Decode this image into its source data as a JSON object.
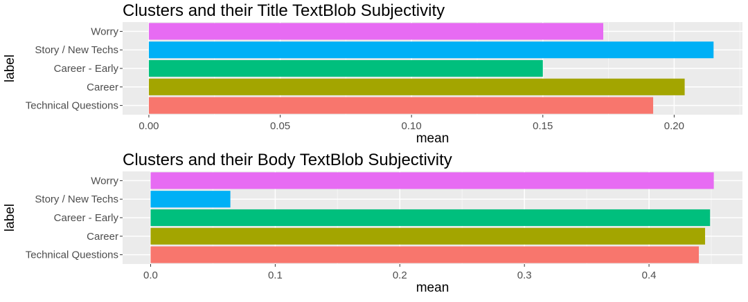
{
  "chart_data": [
    {
      "type": "bar",
      "orientation": "horizontal",
      "title": "Clusters and their Title TextBlob Subjectivity",
      "xlabel": "mean",
      "ylabel": "label",
      "categories": [
        "Worry",
        "Story / New Techs",
        "Career - Early",
        "Career",
        "Technical Questions"
      ],
      "values": [
        0.173,
        0.215,
        0.15,
        0.204,
        0.192
      ],
      "colors": [
        "#E76BF3",
        "#00B0F6",
        "#00BF7D",
        "#A3A500",
        "#F8766D"
      ],
      "xlim": [
        -0.01,
        0.226
      ],
      "xticks": [
        0.0,
        0.05,
        0.1,
        0.15,
        0.2
      ],
      "xtick_labels": [
        "0.00",
        "0.05",
        "0.10",
        "0.15",
        "0.20"
      ],
      "grid": true,
      "legend": "none"
    },
    {
      "type": "bar",
      "orientation": "horizontal",
      "title": "Clusters and their Body TextBlob Subjectivity",
      "xlabel": "mean",
      "ylabel": "label",
      "categories": [
        "Worry",
        "Story / New Techs",
        "Career - Early",
        "Career",
        "Technical Questions"
      ],
      "values": [
        0.452,
        0.064,
        0.449,
        0.445,
        0.44
      ],
      "colors": [
        "#E76BF3",
        "#00B0F6",
        "#00BF7D",
        "#A3A500",
        "#F8766D"
      ],
      "xlim": [
        -0.0225,
        0.475
      ],
      "xticks": [
        0.0,
        0.1,
        0.2,
        0.3,
        0.4
      ],
      "xtick_labels": [
        "0.0",
        "0.1",
        "0.2",
        "0.3",
        "0.4"
      ],
      "grid": true,
      "legend": "none"
    }
  ]
}
